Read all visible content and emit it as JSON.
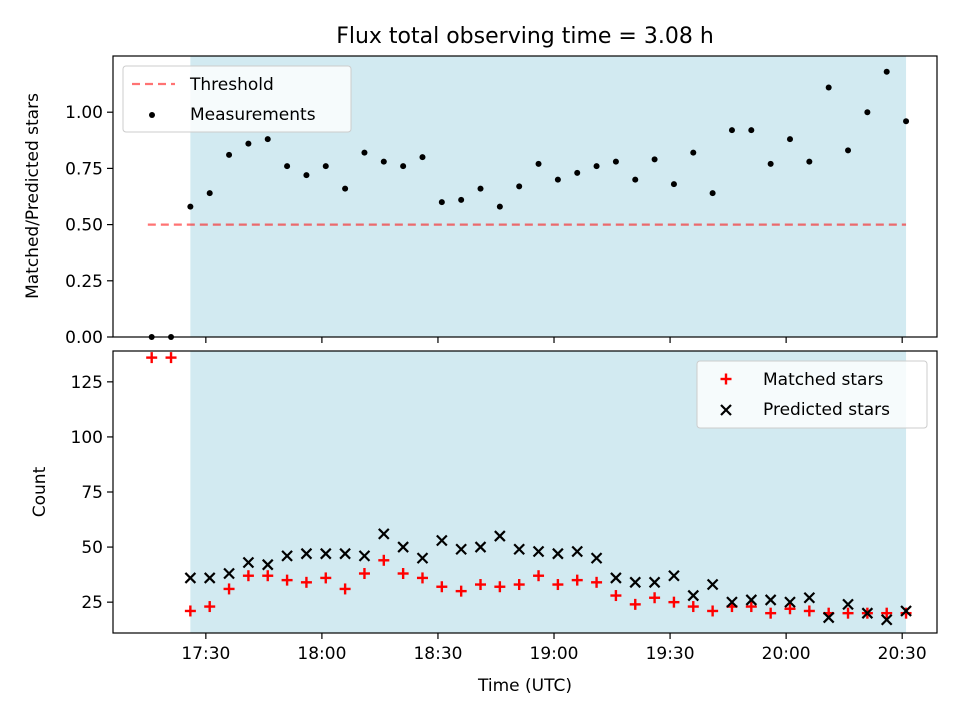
{
  "title": "Flux total observing time = 3.08 h",
  "colors": {
    "shade": "#add8e6",
    "threshold": "#ff0000",
    "measurements": "#000000",
    "matched": "#ff0000",
    "predicted": "#000000"
  },
  "chart_data": [
    {
      "type": "scatter",
      "ylabel": "Matched/Predicted stars",
      "ylim": [
        0.0,
        1.25
      ],
      "yticks": [
        0.0,
        0.25,
        0.5,
        0.75,
        1.0
      ],
      "yticklabels": [
        "0.00",
        "0.25",
        "0.50",
        "0.75",
        "1.00"
      ],
      "legend_position": "upper-left",
      "threshold": {
        "name": "Threshold",
        "value": 0.5,
        "x_start": "17:15",
        "x_end": "20:31"
      },
      "shaded_span": {
        "x_start": "17:26",
        "x_end": "20:31"
      },
      "series": [
        {
          "name": "Measurements",
          "x": [
            "17:16",
            "17:21",
            "17:26",
            "17:31",
            "17:36",
            "17:41",
            "17:46",
            "17:51",
            "17:56",
            "18:01",
            "18:06",
            "18:11",
            "18:16",
            "18:21",
            "18:26",
            "18:31",
            "18:36",
            "18:41",
            "18:46",
            "18:51",
            "18:56",
            "19:01",
            "19:06",
            "19:11",
            "19:16",
            "19:21",
            "19:26",
            "19:31",
            "19:36",
            "19:41",
            "19:46",
            "19:51",
            "19:56",
            "20:01",
            "20:06",
            "20:11",
            "20:16",
            "20:21",
            "20:26",
            "20:31"
          ],
          "values": [
            0.0,
            0.0,
            0.58,
            0.64,
            0.81,
            0.86,
            0.88,
            0.76,
            0.72,
            0.76,
            0.66,
            0.82,
            0.78,
            0.76,
            0.8,
            0.6,
            0.61,
            0.66,
            0.58,
            0.67,
            0.77,
            0.7,
            0.73,
            0.76,
            0.78,
            0.7,
            0.79,
            0.68,
            0.82,
            0.64,
            0.92,
            0.92,
            0.77,
            0.88,
            0.78,
            1.11,
            0.83,
            1.0,
            1.18,
            0.96
          ]
        }
      ]
    },
    {
      "type": "scatter",
      "xlabel": "Time (UTC)",
      "ylabel": "Count",
      "ylim": [
        11,
        139
      ],
      "yticks": [
        25,
        50,
        75,
        100,
        125
      ],
      "yticklabels": [
        "25",
        "50",
        "75",
        "100",
        "125"
      ],
      "xlim": [
        "17:06",
        "20:39"
      ],
      "xticks": [
        "17:30",
        "18:00",
        "18:30",
        "19:00",
        "19:30",
        "20:00",
        "20:30"
      ],
      "legend_position": "upper-right",
      "shaded_span": {
        "x_start": "17:26",
        "x_end": "20:31"
      },
      "series": [
        {
          "name": "Matched stars",
          "x": [
            "17:16",
            "17:21",
            "17:26",
            "17:31",
            "17:36",
            "17:41",
            "17:46",
            "17:51",
            "17:56",
            "18:01",
            "18:06",
            "18:11",
            "18:16",
            "18:21",
            "18:26",
            "18:31",
            "18:36",
            "18:41",
            "18:46",
            "18:51",
            "18:56",
            "19:01",
            "19:06",
            "19:11",
            "19:16",
            "19:21",
            "19:26",
            "19:31",
            "19:36",
            "19:41",
            "19:46",
            "19:51",
            "19:56",
            "20:01",
            "20:06",
            "20:11",
            "20:16",
            "20:21",
            "20:26",
            "20:31"
          ],
          "values": [
            136,
            136,
            21,
            23,
            31,
            37,
            37,
            35,
            34,
            36,
            31,
            38,
            44,
            38,
            36,
            32,
            30,
            33,
            32,
            33,
            37,
            33,
            35,
            34,
            28,
            24,
            27,
            25,
            23,
            21,
            23,
            23,
            20,
            22,
            21,
            20,
            20,
            20,
            20,
            20
          ]
        },
        {
          "name": "Predicted stars",
          "x": [
            "17:26",
            "17:31",
            "17:36",
            "17:41",
            "17:46",
            "17:51",
            "17:56",
            "18:01",
            "18:06",
            "18:11",
            "18:16",
            "18:21",
            "18:26",
            "18:31",
            "18:36",
            "18:41",
            "18:46",
            "18:51",
            "18:56",
            "19:01",
            "19:06",
            "19:11",
            "19:16",
            "19:21",
            "19:26",
            "19:31",
            "19:36",
            "19:41",
            "19:46",
            "19:51",
            "19:56",
            "20:01",
            "20:06",
            "20:11",
            "20:16",
            "20:21",
            "20:26",
            "20:31"
          ],
          "values": [
            36,
            36,
            38,
            43,
            42,
            46,
            47,
            47,
            47,
            46,
            56,
            50,
            45,
            53,
            49,
            50,
            55,
            49,
            48,
            47,
            48,
            45,
            36,
            34,
            34,
            37,
            28,
            33,
            25,
            26,
            26,
            25,
            27,
            18,
            24,
            20,
            17,
            21
          ]
        }
      ]
    }
  ]
}
